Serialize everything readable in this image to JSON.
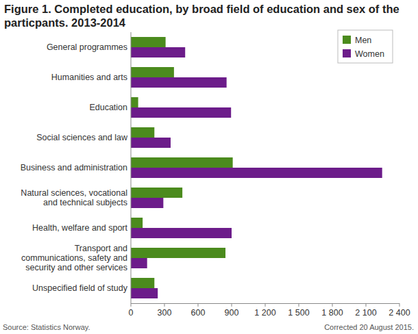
{
  "chart_data": {
    "type": "bar",
    "orientation": "horizontal",
    "title": "Figure 1. Completed education, by broad field of education and sex of the particpants. 2013-2014",
    "source": "Source: Statistics Norway.",
    "note": "Corrected 20 August 2015.",
    "categories": [
      "General programmes",
      "Humanities and arts",
      "Education",
      "Social sciences and law",
      "Business and administration",
      "Natural sciences, vocational and technical subjects",
      "Health, welfare and sport",
      "Transport and communications, safety and security and other services",
      "Unspecified field of study"
    ],
    "series": [
      {
        "name": "Men",
        "color": "#4b8b1d",
        "values": [
          310,
          385,
          65,
          210,
          910,
          460,
          105,
          845,
          210
        ]
      },
      {
        "name": "Women",
        "color": "#6c1c8a",
        "values": [
          485,
          855,
          895,
          355,
          2245,
          290,
          900,
          145,
          240
        ]
      }
    ],
    "xlim": [
      0,
      2400
    ],
    "xticks": [
      0,
      300,
      600,
      900,
      {
        "value": 1200,
        "label": "1 200"
      },
      {
        "value": 1500,
        "label": "1 500"
      },
      {
        "value": 1800,
        "label": "1 800"
      },
      {
        "value": 2100,
        "label": "2 100"
      },
      {
        "value": 2400,
        "label": "2 400"
      }
    ],
    "grid": false,
    "legend": "top-right"
  }
}
